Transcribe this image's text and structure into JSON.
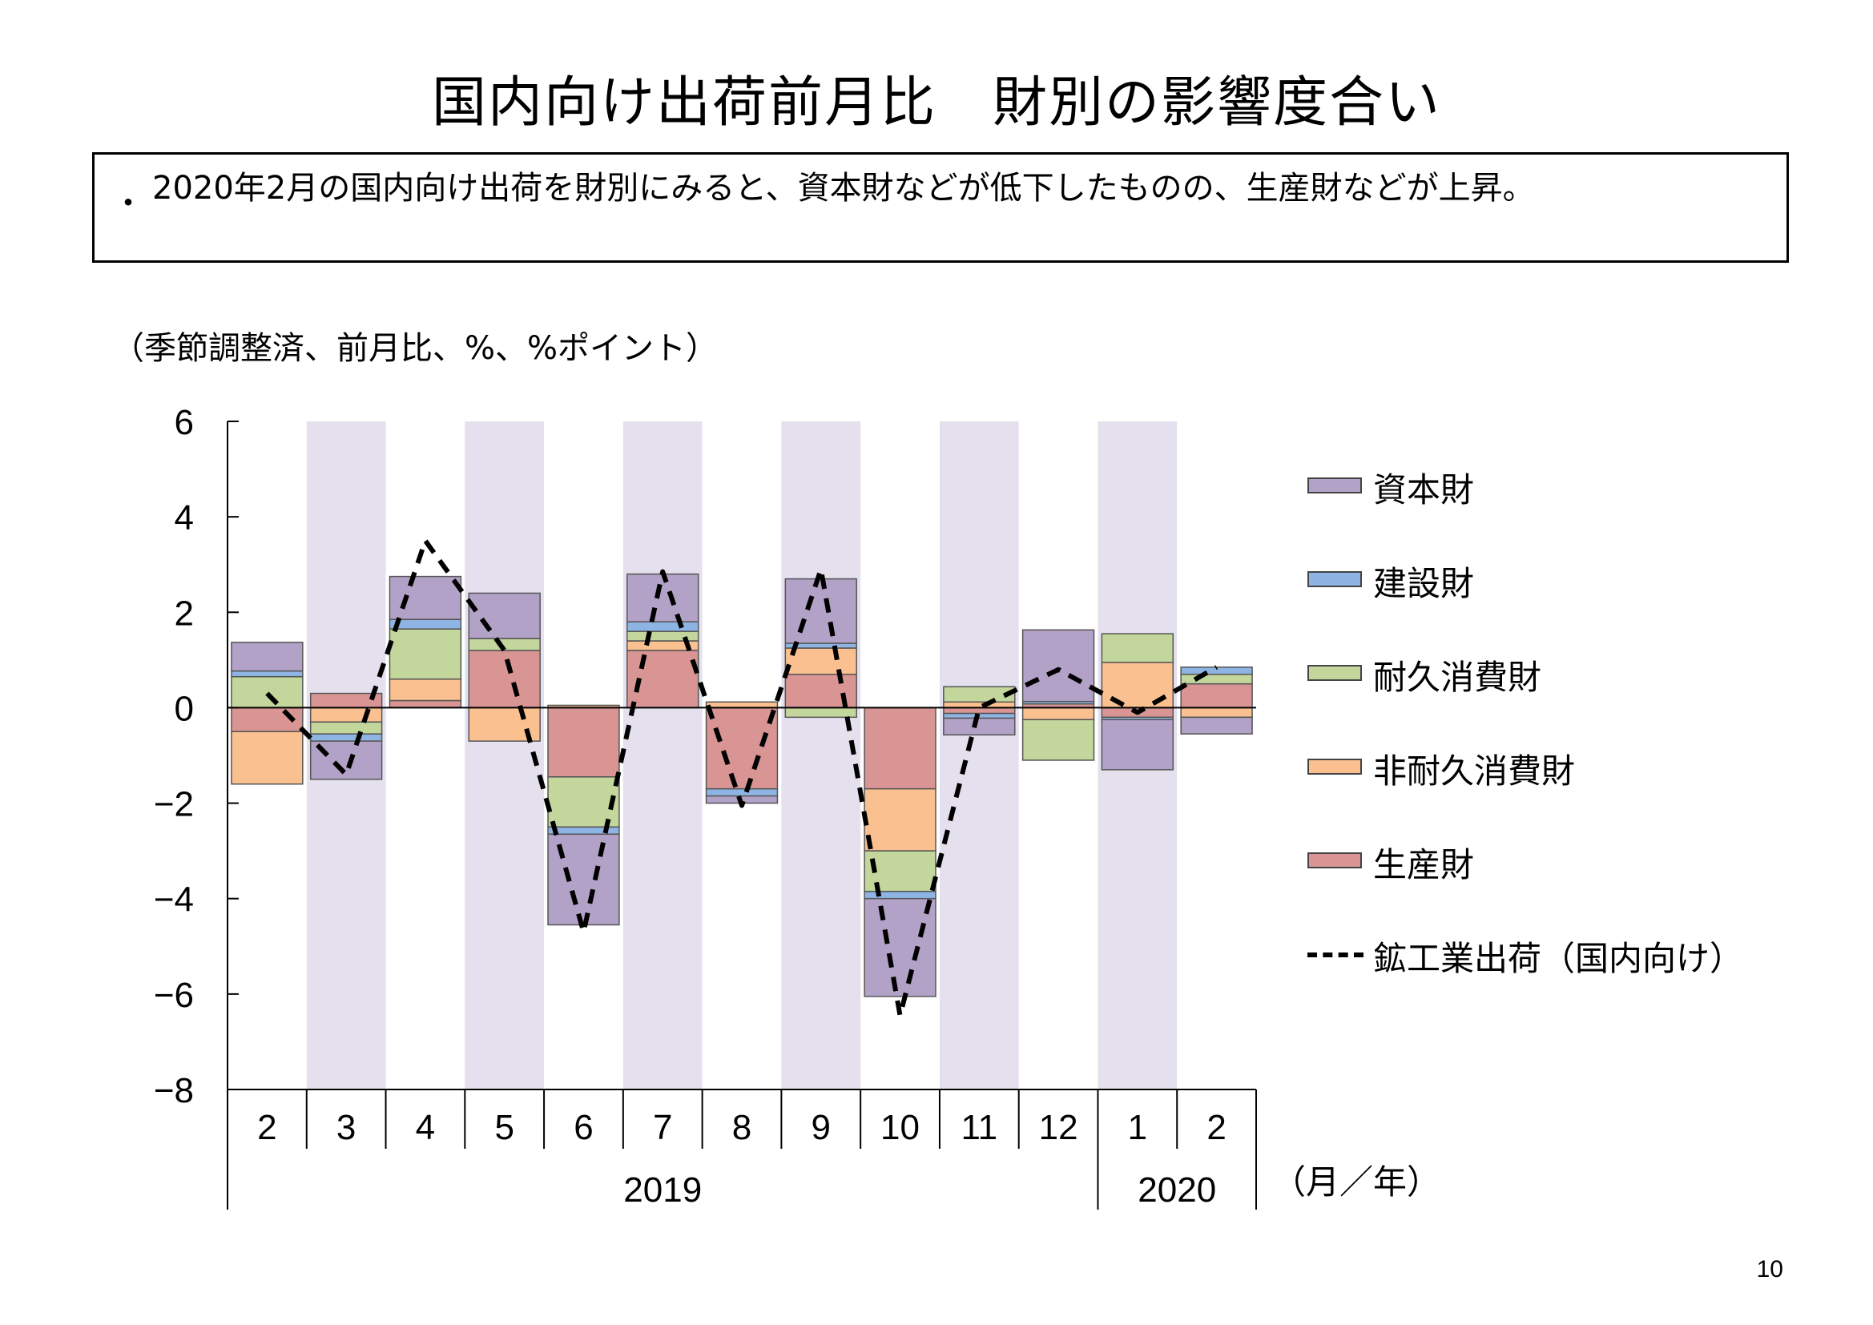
{
  "page": {
    "title": "国内向け出荷前月比　財別の影響度合い",
    "summary_bullet": "・",
    "summary_text": "2020年2月の国内向け出荷を財別にみると、資本財などが低下したものの、生産財などが上昇。",
    "units_note": "（季節調整済、前月比、%、%ポイント）",
    "page_number": "10"
  },
  "colors": {
    "shade": "#e5e0ee",
    "capital": "#b3a2c7",
    "construction": "#8eb4e3",
    "durable": "#c3d69b",
    "nondurable": "#fac090",
    "producer": "#d99594",
    "line": "#000000",
    "outline": "#555555"
  },
  "chart_data": {
    "type": "bar",
    "stacked": true,
    "categories": [
      "2",
      "3",
      "4",
      "5",
      "6",
      "7",
      "8",
      "9",
      "10",
      "11",
      "12",
      "1",
      "2"
    ],
    "year_groups": [
      {
        "label": "2019",
        "from": 0,
        "to": 10
      },
      {
        "label": "2020",
        "from": 11,
        "to": 12
      }
    ],
    "xunit_label": "（月／年）",
    "ylim": [
      -8,
      6
    ],
    "yticks": [
      6,
      4,
      2,
      0,
      -2,
      -4,
      -6,
      -8
    ],
    "ytick_labels": [
      "6",
      "4",
      "2",
      "0",
      "−2",
      "−4",
      "−6",
      "−8"
    ],
    "shaded_categories": [
      1,
      3,
      5,
      7,
      9,
      11
    ],
    "stack_order": [
      "producer",
      "nondurable",
      "durable",
      "construction",
      "capital"
    ],
    "series": [
      {
        "key": "capital",
        "name": "資本財",
        "values": [
          0.6,
          -0.8,
          0.9,
          0.95,
          -1.9,
          1.0,
          -0.15,
          1.35,
          -2.05,
          -0.35,
          1.5,
          -1.05,
          -0.35
        ]
      },
      {
        "key": "construction",
        "name": "建設財",
        "values": [
          0.12,
          -0.15,
          0.2,
          0.0,
          -0.15,
          0.2,
          -0.15,
          0.1,
          -0.15,
          -0.1,
          0.05,
          -0.05,
          0.15
        ]
      },
      {
        "key": "durable",
        "name": "耐久消費財",
        "values": [
          0.65,
          -0.25,
          1.05,
          0.25,
          -1.05,
          0.2,
          0.0,
          -0.2,
          -0.85,
          0.32,
          -0.85,
          0.6,
          0.2
        ]
      },
      {
        "key": "nondurable",
        "name": "非耐久消費財",
        "values": [
          -1.1,
          -0.3,
          0.45,
          -0.7,
          0.05,
          0.2,
          0.12,
          0.55,
          -1.3,
          0.12,
          -0.25,
          0.95,
          -0.2
        ]
      },
      {
        "key": "producer",
        "name": "生産財",
        "values": [
          -0.5,
          0.3,
          0.15,
          1.2,
          -1.45,
          1.2,
          -1.7,
          0.7,
          -1.7,
          -0.12,
          0.08,
          -0.2,
          0.5
        ]
      }
    ],
    "line_series": {
      "name": "鉱工業出荷（国内向け）",
      "values": [
        0.3,
        -1.4,
        3.5,
        1.2,
        -4.7,
        2.85,
        -2.05,
        2.9,
        -6.45,
        0.0,
        0.8,
        -0.1,
        0.85
      ]
    },
    "legend_position": "right"
  }
}
